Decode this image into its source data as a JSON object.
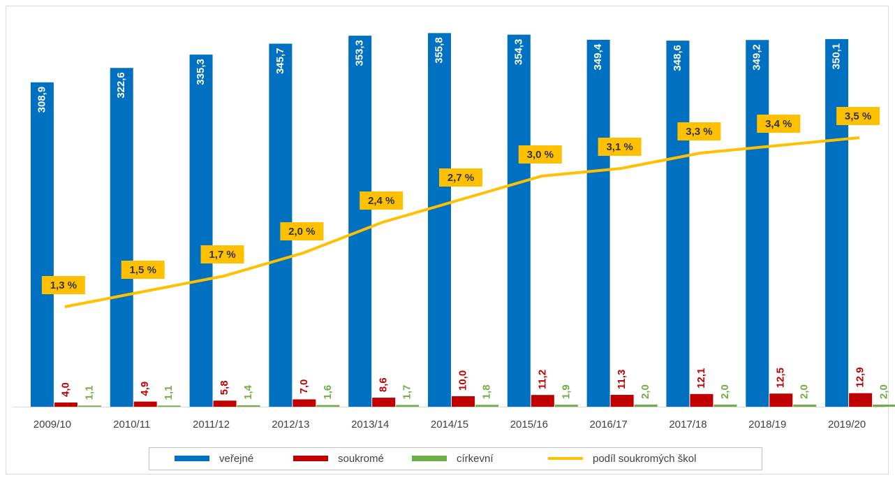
{
  "chart_data": {
    "type": "bar",
    "categories": [
      "2009/10",
      "2010/11",
      "2011/12",
      "2012/13",
      "2013/14",
      "2014/15",
      "2015/16",
      "2016/17",
      "2017/18",
      "2018/19",
      "2019/20"
    ],
    "ylim": [
      0,
      366
    ],
    "y2lim": [
      0,
      5
    ],
    "legend": "bottom",
    "series": [
      {
        "name": "veřejné",
        "color": "#0070c0",
        "values": [
          308.9,
          322.6,
          335.3,
          345.7,
          353.3,
          355.8,
          354.3,
          349.4,
          348.6,
          349.2,
          350.1
        ],
        "value_labels": [
          "308,9",
          "322,6",
          "335,3",
          "345,7",
          "353,3",
          "355,8",
          "354,3",
          "349,4",
          "348,6",
          "349,2",
          "350,1"
        ]
      },
      {
        "name": "soukromé",
        "color": "#c00000",
        "values": [
          4.0,
          4.9,
          5.8,
          7.0,
          8.6,
          10.0,
          11.2,
          11.3,
          12.1,
          12.5,
          12.9
        ],
        "value_labels": [
          "4,0",
          "4,9",
          "5,8",
          "7,0",
          "8,6",
          "10,0",
          "11,2",
          "11,3",
          "12,1",
          "12,5",
          "12,9"
        ]
      },
      {
        "name": "církevní",
        "color": "#70ad47",
        "values": [
          1.1,
          1.1,
          1.4,
          1.6,
          1.7,
          1.8,
          1.9,
          2.0,
          2.0,
          2.0,
          2.0
        ],
        "value_labels": [
          "1,1",
          "1,1",
          "1,4",
          "1,6",
          "1,7",
          "1,8",
          "1,9",
          "2,0",
          "2,0",
          "2,0",
          "2,0"
        ]
      },
      {
        "name": "podíl soukromých škol",
        "color": "#ffc000",
        "type": "line",
        "axis": "y2",
        "values": [
          1.3,
          1.5,
          1.7,
          2.0,
          2.4,
          2.7,
          3.0,
          3.1,
          3.3,
          3.4,
          3.5
        ],
        "value_labels": [
          "1,3 %",
          "1,5 %",
          "1,7 %",
          "2,0 %",
          "2,4 %",
          "2,7 %",
          "3,0 %",
          "3,1 %",
          "3,3 %",
          "3,4 %",
          "3,5 %"
        ]
      }
    ]
  }
}
